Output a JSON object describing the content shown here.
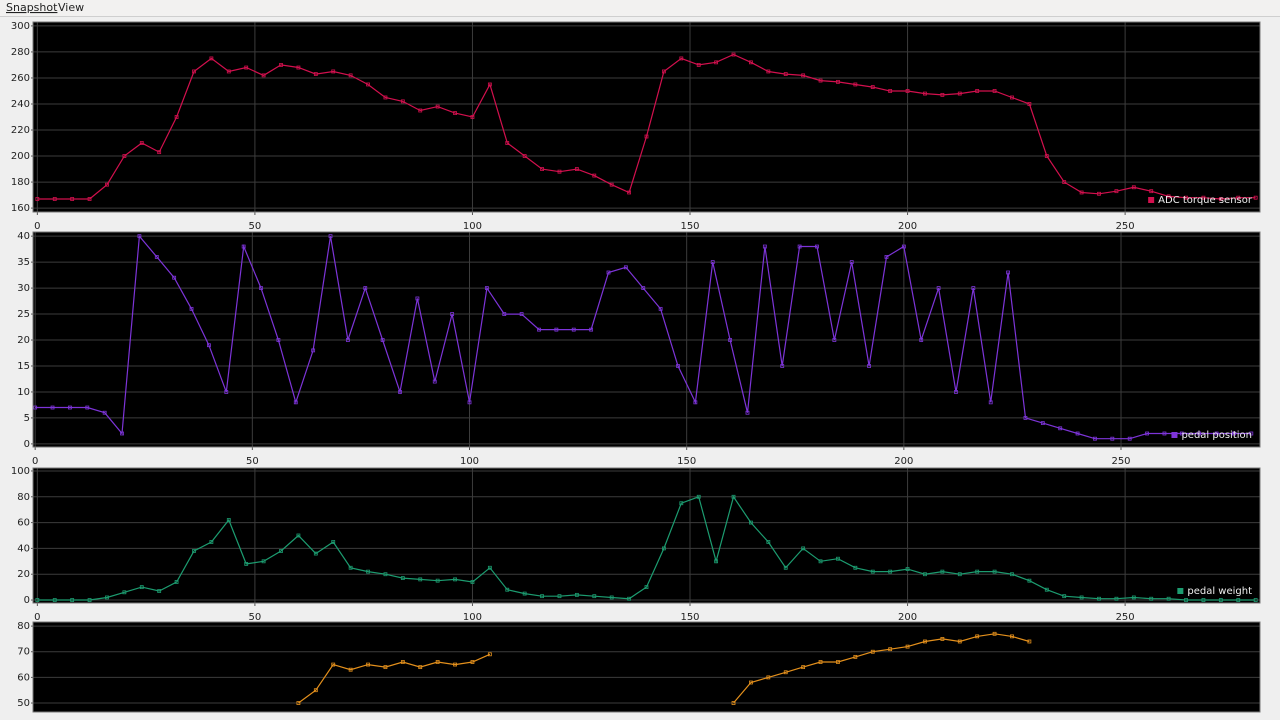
{
  "menu": {
    "items": [
      "Snapshot",
      "View"
    ]
  },
  "chart_data": [
    {
      "type": "line",
      "xlim": [
        -1,
        281
      ],
      "ylim": [
        157,
        303
      ],
      "xticks": [
        0,
        50,
        100,
        150,
        200,
        250
      ],
      "yticks": [
        160,
        180,
        200,
        220,
        240,
        260,
        280,
        300
      ],
      "grid": true,
      "legend": "lower right",
      "x": [
        0,
        4,
        8,
        12,
        16,
        20,
        24,
        28,
        32,
        36,
        40,
        44,
        48,
        52,
        56,
        60,
        64,
        68,
        72,
        76,
        80,
        84,
        88,
        92,
        96,
        100,
        104,
        108,
        112,
        116,
        120,
        124,
        128,
        132,
        136,
        140,
        144,
        148,
        152,
        156,
        160,
        164,
        168,
        172,
        176,
        180,
        184,
        188,
        192,
        196,
        200,
        204,
        208,
        212,
        216,
        220,
        224,
        228,
        232,
        236,
        240,
        244,
        248,
        252,
        256,
        260,
        264,
        268,
        272,
        276,
        280
      ],
      "series": [
        {
          "name": "ADC torque sensor",
          "color": "#d3104e",
          "values": [
            167,
            167,
            167,
            167,
            178,
            200,
            210,
            203,
            230,
            265,
            275,
            265,
            268,
            262,
            270,
            268,
            263,
            265,
            262,
            255,
            245,
            242,
            235,
            238,
            233,
            230,
            255,
            210,
            200,
            190,
            188,
            190,
            185,
            178,
            172,
            215,
            265,
            275,
            270,
            272,
            278,
            272,
            265,
            263,
            262,
            258,
            257,
            255,
            253,
            250,
            250,
            248,
            247,
            248,
            250,
            250,
            245,
            240,
            200,
            180,
            172,
            171,
            173,
            176,
            173,
            169,
            168,
            168,
            167,
            168,
            168
          ]
        }
      ]
    },
    {
      "type": "line",
      "xlim": [
        -0.5,
        282
      ],
      "ylim": [
        -0.6,
        40.8
      ],
      "xticks": [
        0,
        50,
        100,
        150,
        200,
        250
      ],
      "yticks": [
        0,
        5,
        10,
        15,
        20,
        25,
        30,
        35,
        40
      ],
      "grid": true,
      "legend": "lower right",
      "x": [
        0,
        4,
        8,
        12,
        16,
        20,
        24,
        28,
        32,
        36,
        40,
        44,
        48,
        52,
        56,
        60,
        64,
        68,
        72,
        76,
        80,
        84,
        88,
        92,
        96,
        100,
        104,
        108,
        112,
        116,
        120,
        124,
        128,
        132,
        136,
        140,
        144,
        148,
        152,
        156,
        160,
        164,
        168,
        172,
        176,
        180,
        184,
        188,
        192,
        196,
        200,
        204,
        208,
        212,
        216,
        220,
        224,
        228,
        232,
        236,
        240,
        244,
        248,
        252,
        256,
        260,
        264,
        268,
        272,
        276,
        280
      ],
      "series": [
        {
          "name": "pedal position",
          "color": "#7d34d8",
          "values": [
            7,
            7,
            7,
            7,
            6,
            2,
            40,
            36,
            32,
            26,
            19,
            10,
            38,
            30,
            20,
            8,
            18,
            40,
            20,
            30,
            20,
            10,
            28,
            12,
            25,
            8,
            30,
            25,
            25,
            22,
            22,
            22,
            22,
            33,
            34,
            30,
            26,
            15,
            8,
            35,
            20,
            6,
            38,
            15,
            38,
            38,
            20,
            35,
            15,
            36,
            38,
            20,
            30,
            10,
            30,
            8,
            33,
            5,
            4,
            3,
            2,
            1,
            1,
            1,
            2,
            2,
            2,
            2,
            2,
            2,
            2
          ]
        }
      ]
    },
    {
      "type": "line",
      "xlim": [
        -1,
        281
      ],
      "ylim": [
        -2.3,
        102.3
      ],
      "xticks": [
        0,
        50,
        100,
        150,
        200,
        250
      ],
      "yticks": [
        0,
        20,
        40,
        60,
        80,
        100
      ],
      "grid": true,
      "legend": "lower right",
      "x": [
        0,
        4,
        8,
        12,
        16,
        20,
        24,
        28,
        32,
        36,
        40,
        44,
        48,
        52,
        56,
        60,
        64,
        68,
        72,
        76,
        80,
        84,
        88,
        92,
        96,
        100,
        104,
        108,
        112,
        116,
        120,
        124,
        128,
        132,
        136,
        140,
        144,
        148,
        152,
        156,
        160,
        164,
        168,
        172,
        176,
        180,
        184,
        188,
        192,
        196,
        200,
        204,
        208,
        212,
        216,
        220,
        224,
        228,
        232,
        236,
        240,
        244,
        248,
        252,
        256,
        260,
        264,
        268,
        272,
        276,
        280
      ],
      "series": [
        {
          "name": "pedal weight",
          "color": "#1c9c70",
          "values": [
            0,
            0,
            0,
            0,
            2,
            6,
            10,
            7,
            14,
            38,
            45,
            62,
            28,
            30,
            38,
            50,
            36,
            45,
            25,
            22,
            20,
            17,
            16,
            15,
            16,
            14,
            25,
            8,
            5,
            3,
            3,
            4,
            3,
            2,
            1,
            10,
            40,
            75,
            80,
            30,
            80,
            60,
            45,
            25,
            40,
            30,
            32,
            25,
            22,
            22,
            24,
            20,
            22,
            20,
            22,
            22,
            20,
            15,
            8,
            3,
            2,
            1,
            1,
            2,
            1,
            1,
            0,
            0,
            0,
            0,
            0
          ]
        }
      ]
    },
    {
      "type": "line",
      "xlim": [
        -1,
        281
      ],
      "ylim": [
        46.5,
        81.6
      ],
      "yticks": [
        50,
        60,
        70,
        80
      ],
      "grid": true,
      "x": [
        0,
        4,
        8,
        12,
        16,
        20,
        24,
        28,
        32,
        36,
        40,
        44,
        48,
        52,
        56,
        60,
        64,
        68,
        72,
        76,
        80,
        84,
        88,
        92,
        96,
        100,
        104,
        108,
        112,
        116,
        120,
        124,
        128,
        132,
        136,
        140,
        144,
        148,
        152,
        156,
        160,
        164,
        168,
        172,
        176,
        180,
        184,
        188,
        192,
        196,
        200,
        204,
        208,
        212,
        216,
        220,
        224,
        228,
        232,
        236,
        240,
        244,
        248,
        252,
        256,
        260,
        264,
        268,
        272,
        276,
        280
      ],
      "series": [
        {
          "color": "#e4901c",
          "values": [
            null,
            null,
            null,
            null,
            null,
            null,
            null,
            null,
            null,
            null,
            null,
            null,
            null,
            null,
            null,
            50,
            55,
            65,
            63,
            65,
            64,
            66,
            64,
            66,
            65,
            66,
            69,
            null,
            null,
            null,
            null,
            null,
            null,
            null,
            null,
            null,
            null,
            null,
            null,
            null,
            50,
            58,
            60,
            62,
            64,
            66,
            66,
            68,
            70,
            71,
            72,
            74,
            75,
            74,
            76,
            77,
            76,
            74,
            null,
            null,
            null,
            null,
            null,
            null,
            null,
            null,
            null,
            null,
            null,
            null,
            null
          ]
        }
      ]
    }
  ]
}
